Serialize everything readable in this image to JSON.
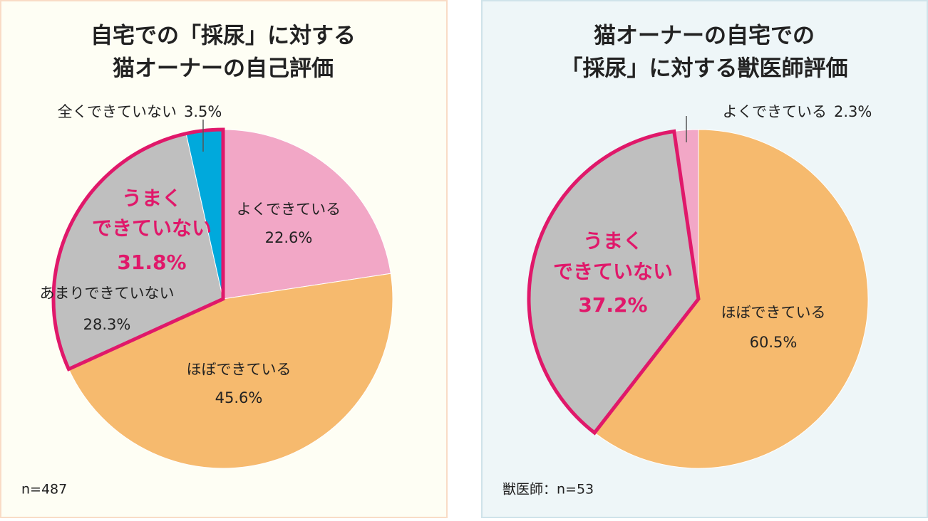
{
  "chart_data": [
    {
      "type": "pie",
      "title": [
        "自宅での「採尿」に対する",
        "猫オーナーの自己評価"
      ],
      "categories": [
        "よくできている",
        "ほぼできている",
        "あまりできていない",
        "全くできていない"
      ],
      "values": [
        22.6,
        45.6,
        28.3,
        3.5
      ],
      "value_labels": [
        "22.6%",
        "45.6%",
        "28.3%",
        "3.5%"
      ],
      "colors": [
        "#f2a7c6",
        "#f6ba6e",
        "#bfbfbf",
        "#00a9dc"
      ],
      "annotation": {
        "lines": [
          "うまく",
          "できていない"
        ],
        "value": 31.8,
        "value_label": "31.8%"
      },
      "note": "n=487"
    },
    {
      "type": "pie",
      "title": [
        "猫オーナーの自宅での",
        "「採尿」に対する獣医師評価"
      ],
      "categories": [
        "ほぼできている",
        null,
        "よくできている"
      ],
      "values": [
        60.5,
        37.2,
        2.3
      ],
      "value_labels": [
        "60.5%",
        "37.2%",
        "2.3%"
      ],
      "colors": [
        "#f6ba6e",
        "#bfbfbf",
        "#f2a7c6"
      ],
      "annotation": {
        "lines": [
          "うまく",
          "できていない"
        ]
      },
      "note": "獣医師：n=53"
    }
  ]
}
